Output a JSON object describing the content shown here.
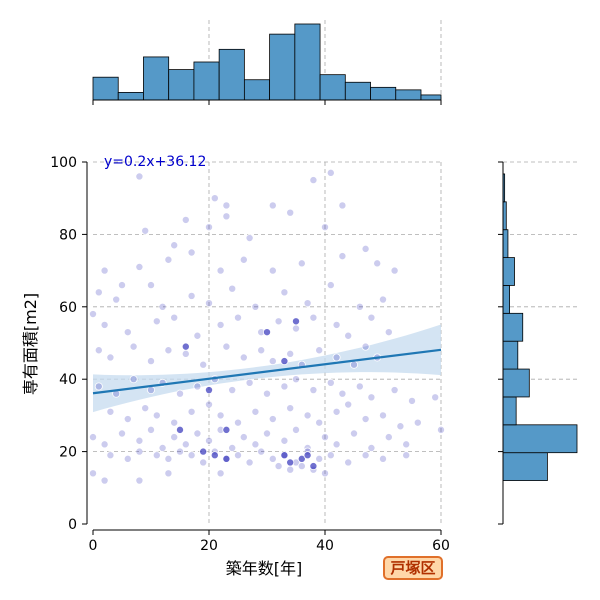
{
  "chart_data": {
    "type": "scatter",
    "xlabel": "築年数[年]",
    "ylabel": "専有面積[m2]",
    "xlim": [
      0,
      60
    ],
    "ylim": [
      0,
      100
    ],
    "xticks": [
      0,
      20,
      40,
      60
    ],
    "yticks": [
      0,
      20,
      40,
      60,
      80,
      100
    ],
    "grid": true,
    "regression": {
      "label": "y=0.2x+36.12",
      "slope": 0.2,
      "intercept": 36.12,
      "color": "#1f77b4",
      "ci_color": "#c6dbef"
    },
    "point_color": "#3333bb",
    "hist_color": "#5599c8",
    "x_hist": {
      "bin_width": 4.35,
      "x_start": 0,
      "counts": [
        9,
        3,
        17,
        12,
        15,
        20,
        8,
        26,
        30,
        10,
        7,
        5,
        4,
        2
      ]
    },
    "y_hist": {
      "bin_width": 7.7,
      "y_start": 12,
      "counts": [
        27,
        45,
        8,
        16,
        9,
        12,
        4,
        7,
        3,
        2,
        1
      ]
    },
    "points": [
      [
        8,
        96
      ],
      [
        21,
        90
      ],
      [
        23,
        88
      ],
      [
        31,
        88
      ],
      [
        38,
        95
      ],
      [
        41,
        97
      ],
      [
        43,
        88
      ],
      [
        9,
        81
      ],
      [
        14,
        77
      ],
      [
        16,
        84
      ],
      [
        20,
        82
      ],
      [
        23,
        85
      ],
      [
        27,
        79
      ],
      [
        34,
        86
      ],
      [
        40,
        82
      ],
      [
        47,
        76
      ],
      [
        2,
        70
      ],
      [
        5,
        66
      ],
      [
        8,
        71
      ],
      [
        13,
        73
      ],
      [
        17,
        75
      ],
      [
        22,
        70
      ],
      [
        26,
        73
      ],
      [
        31,
        70
      ],
      [
        36,
        72
      ],
      [
        43,
        74
      ],
      [
        49,
        72
      ],
      [
        52,
        70
      ],
      [
        1,
        64
      ],
      [
        4,
        62
      ],
      [
        10,
        66
      ],
      [
        12,
        60
      ],
      [
        17,
        63
      ],
      [
        20,
        61
      ],
      [
        24,
        65
      ],
      [
        28,
        60
      ],
      [
        33,
        64
      ],
      [
        37,
        61
      ],
      [
        41,
        66
      ],
      [
        46,
        60
      ],
      [
        50,
        62
      ],
      [
        0,
        58
      ],
      [
        2,
        55
      ],
      [
        6,
        53
      ],
      [
        11,
        56
      ],
      [
        14,
        57
      ],
      [
        18,
        52
      ],
      [
        22,
        55
      ],
      [
        25,
        57
      ],
      [
        29,
        53
      ],
      [
        32,
        56
      ],
      [
        35,
        54
      ],
      [
        38,
        57
      ],
      [
        42,
        55
      ],
      [
        44,
        52
      ],
      [
        48,
        57
      ],
      [
        51,
        53
      ],
      [
        1,
        48
      ],
      [
        3,
        46
      ],
      [
        7,
        49
      ],
      [
        10,
        45
      ],
      [
        13,
        48
      ],
      [
        16,
        47
      ],
      [
        19,
        44
      ],
      [
        23,
        49
      ],
      [
        26,
        46
      ],
      [
        29,
        48
      ],
      [
        31,
        45
      ],
      [
        34,
        47
      ],
      [
        36,
        44
      ],
      [
        39,
        48
      ],
      [
        42,
        46
      ],
      [
        45,
        44
      ],
      [
        47,
        49
      ],
      [
        49,
        46
      ],
      [
        1,
        38
      ],
      [
        4,
        36
      ],
      [
        7,
        40
      ],
      [
        10,
        37
      ],
      [
        12,
        39
      ],
      [
        15,
        36
      ],
      [
        18,
        38
      ],
      [
        21,
        40
      ],
      [
        24,
        37
      ],
      [
        27,
        39
      ],
      [
        30,
        36
      ],
      [
        33,
        38
      ],
      [
        35,
        40
      ],
      [
        38,
        37
      ],
      [
        41,
        39
      ],
      [
        43,
        36
      ],
      [
        46,
        38
      ],
      [
        48,
        35
      ],
      [
        52,
        37
      ],
      [
        55,
        34
      ],
      [
        59,
        35
      ],
      [
        3,
        31
      ],
      [
        6,
        29
      ],
      [
        9,
        32
      ],
      [
        11,
        30
      ],
      [
        14,
        28
      ],
      [
        17,
        31
      ],
      [
        20,
        33
      ],
      [
        22,
        30
      ],
      [
        25,
        28
      ],
      [
        28,
        31
      ],
      [
        31,
        29
      ],
      [
        34,
        32
      ],
      [
        37,
        30
      ],
      [
        39,
        28
      ],
      [
        42,
        31
      ],
      [
        44,
        33
      ],
      [
        47,
        29
      ],
      [
        50,
        30
      ],
      [
        53,
        27
      ],
      [
        56,
        28
      ],
      [
        0,
        24
      ],
      [
        2,
        22
      ],
      [
        5,
        25
      ],
      [
        8,
        23
      ],
      [
        10,
        26
      ],
      [
        12,
        21
      ],
      [
        14,
        24
      ],
      [
        16,
        22
      ],
      [
        18,
        25
      ],
      [
        20,
        23
      ],
      [
        22,
        26
      ],
      [
        24,
        21
      ],
      [
        26,
        24
      ],
      [
        28,
        22
      ],
      [
        30,
        25
      ],
      [
        33,
        23
      ],
      [
        35,
        26
      ],
      [
        37,
        21
      ],
      [
        40,
        24
      ],
      [
        42,
        22
      ],
      [
        45,
        25
      ],
      [
        48,
        21
      ],
      [
        51,
        24
      ],
      [
        54,
        22
      ],
      [
        60,
        26
      ],
      [
        3,
        19
      ],
      [
        6,
        18
      ],
      [
        8,
        20
      ],
      [
        11,
        19
      ],
      [
        13,
        18
      ],
      [
        15,
        20
      ],
      [
        17,
        19
      ],
      [
        19,
        17
      ],
      [
        21,
        20
      ],
      [
        23,
        18
      ],
      [
        25,
        19
      ],
      [
        27,
        17
      ],
      [
        29,
        20
      ],
      [
        31,
        18
      ],
      [
        33,
        19
      ],
      [
        35,
        17
      ],
      [
        37,
        20
      ],
      [
        39,
        18
      ],
      [
        41,
        19
      ],
      [
        44,
        17
      ],
      [
        47,
        19
      ],
      [
        50,
        18
      ],
      [
        54,
        19
      ],
      [
        0,
        14
      ],
      [
        2,
        12
      ],
      [
        8,
        12
      ],
      [
        13,
        14
      ],
      [
        22,
        14
      ],
      [
        32,
        16
      ],
      [
        34,
        15
      ],
      [
        36,
        16
      ],
      [
        38,
        15
      ],
      [
        40,
        14
      ]
    ],
    "dense_points": [
      [
        19,
        20
      ],
      [
        21,
        19
      ],
      [
        23,
        18
      ],
      [
        33,
        19
      ],
      [
        34,
        17
      ],
      [
        36,
        18
      ],
      [
        37,
        19
      ],
      [
        38,
        16
      ],
      [
        15,
        26
      ],
      [
        23,
        26
      ],
      [
        30,
        53
      ],
      [
        35,
        56
      ],
      [
        16,
        49
      ],
      [
        33,
        45
      ],
      [
        20,
        37
      ]
    ]
  },
  "ward_badge": "戸塚区"
}
